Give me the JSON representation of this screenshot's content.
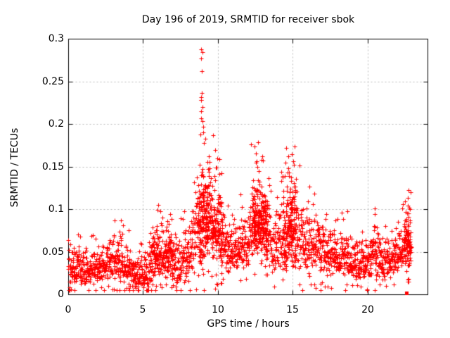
{
  "chart_data": {
    "type": "scatter",
    "title": "Day 196 of 2019, SRMTID for receiver sbok",
    "xlabel": "GPS time / hours",
    "ylabel": "SRMTID / TECUs",
    "xlim": [
      0,
      24
    ],
    "ylim": [
      0,
      0.3
    ],
    "grid": true,
    "grid_style": "dashed",
    "grid_color": "#b8b8b8",
    "border_color": "#000000",
    "xticks": [
      {
        "v": 0,
        "label": "0"
      },
      {
        "v": 5,
        "label": "5"
      },
      {
        "v": 10,
        "label": "10"
      },
      {
        "v": 15,
        "label": "15"
      },
      {
        "v": 20,
        "label": "20"
      }
    ],
    "yticks": [
      {
        "v": 0,
        "label": "0"
      },
      {
        "v": 0.05,
        "label": "0.05"
      },
      {
        "v": 0.1,
        "label": "0.1"
      },
      {
        "v": 0.15,
        "label": "0.15"
      },
      {
        "v": 0.2,
        "label": "0.2"
      },
      {
        "v": 0.25,
        "label": "0.25"
      },
      {
        "v": 0.3,
        "label": "0.3"
      }
    ],
    "marker": {
      "shape": "plus",
      "size": 7,
      "color": "#ff0000"
    },
    "end_marker": {
      "shape": "filled-square",
      "x": 22.57,
      "y": 0.0015,
      "size": 5,
      "color": "#ff0000"
    },
    "point_cloud": {
      "seed": 1962019,
      "count": 2400,
      "t_max": 22.9,
      "x_jitter": 0.05,
      "skew": 1.3,
      "tail_prob": 0.025,
      "tail_scale": 0.35,
      "low_prob": 0.035,
      "low_scale": 0.25,
      "y_min": 0.005,
      "y_max": 0.295,
      "envelope": [
        [
          0.0,
          0.01,
          0.062
        ],
        [
          0.5,
          0.012,
          0.06
        ],
        [
          1.0,
          0.01,
          0.055
        ],
        [
          1.5,
          0.012,
          0.058
        ],
        [
          2.0,
          0.014,
          0.06
        ],
        [
          2.5,
          0.015,
          0.065
        ],
        [
          3.0,
          0.016,
          0.07
        ],
        [
          3.5,
          0.015,
          0.08
        ],
        [
          4.0,
          0.01,
          0.06
        ],
        [
          4.5,
          0.005,
          0.042
        ],
        [
          5.0,
          0.004,
          0.05
        ],
        [
          5.5,
          0.01,
          0.078
        ],
        [
          6.0,
          0.015,
          0.092
        ],
        [
          6.4,
          0.018,
          0.1
        ],
        [
          6.8,
          0.015,
          0.09
        ],
        [
          7.3,
          0.01,
          0.07
        ],
        [
          7.7,
          0.015,
          0.085
        ],
        [
          8.1,
          0.02,
          0.095
        ],
        [
          8.5,
          0.03,
          0.125
        ],
        [
          8.9,
          0.035,
          0.19
        ],
        [
          9.2,
          0.04,
          0.16
        ],
        [
          9.6,
          0.035,
          0.15
        ],
        [
          10.0,
          0.03,
          0.14
        ],
        [
          10.4,
          0.025,
          0.115
        ],
        [
          10.8,
          0.02,
          0.095
        ],
        [
          11.2,
          0.022,
          0.09
        ],
        [
          11.6,
          0.025,
          0.095
        ],
        [
          12.0,
          0.03,
          0.105
        ],
        [
          12.4,
          0.045,
          0.14
        ],
        [
          12.8,
          0.05,
          0.15
        ],
        [
          13.2,
          0.04,
          0.135
        ],
        [
          13.6,
          0.025,
          0.105
        ],
        [
          14.0,
          0.025,
          0.11
        ],
        [
          14.4,
          0.03,
          0.13
        ],
        [
          14.8,
          0.035,
          0.145
        ],
        [
          15.1,
          0.03,
          0.15
        ],
        [
          15.4,
          0.028,
          0.125
        ],
        [
          15.8,
          0.025,
          0.11
        ],
        [
          16.2,
          0.025,
          0.105
        ],
        [
          16.6,
          0.022,
          0.095
        ],
        [
          17.0,
          0.02,
          0.088
        ],
        [
          17.5,
          0.018,
          0.08
        ],
        [
          18.0,
          0.02,
          0.078
        ],
        [
          18.4,
          0.02,
          0.088
        ],
        [
          19.0,
          0.015,
          0.07
        ],
        [
          19.5,
          0.015,
          0.07
        ],
        [
          20.0,
          0.018,
          0.075
        ],
        [
          20.5,
          0.02,
          0.09
        ],
        [
          21.0,
          0.018,
          0.072
        ],
        [
          21.4,
          0.02,
          0.075
        ],
        [
          21.8,
          0.022,
          0.08
        ],
        [
          22.2,
          0.028,
          0.095
        ],
        [
          22.6,
          0.03,
          0.105
        ],
        [
          22.9,
          0.03,
          0.1
        ]
      ],
      "extra_density": [
        {
          "from": 5.5,
          "to": 7.0,
          "n": 60
        },
        {
          "from": 8.6,
          "to": 9.4,
          "n": 120
        },
        {
          "from": 9.5,
          "to": 10.3,
          "n": 80
        },
        {
          "from": 12.3,
          "to": 13.3,
          "n": 160
        },
        {
          "from": 14.3,
          "to": 15.2,
          "n": 120
        },
        {
          "from": 22.4,
          "to": 22.9,
          "n": 60
        }
      ]
    },
    "outlier_points": [
      [
        8.85,
        0.188
      ],
      [
        8.88,
        0.288
      ],
      [
        8.88,
        0.231
      ],
      [
        8.9,
        0.277
      ],
      [
        8.9,
        0.228
      ],
      [
        8.9,
        0.207
      ],
      [
        8.93,
        0.262
      ],
      [
        8.95,
        0.284
      ],
      [
        8.95,
        0.22
      ],
      [
        8.87,
        0.215
      ],
      [
        8.97,
        0.203
      ],
      [
        9.0,
        0.197
      ],
      [
        9.02,
        0.19
      ],
      [
        9.06,
        0.178
      ],
      [
        9.4,
        0.162
      ],
      [
        9.45,
        0.155
      ],
      [
        9.42,
        0.148
      ],
      [
        10.1,
        0.141
      ],
      [
        10.25,
        0.142
      ],
      [
        12.2,
        0.176
      ],
      [
        12.6,
        0.156
      ],
      [
        12.65,
        0.15
      ],
      [
        12.75,
        0.145
      ],
      [
        12.9,
        0.158
      ],
      [
        13.0,
        0.157
      ],
      [
        14.7,
        0.148
      ],
      [
        14.75,
        0.143
      ],
      [
        15.05,
        0.156
      ],
      [
        15.08,
        0.152
      ],
      [
        20.5,
        0.094
      ],
      [
        22.75,
        0.122
      ],
      [
        22.8,
        0.102
      ],
      [
        22.82,
        0.1
      ]
    ]
  }
}
